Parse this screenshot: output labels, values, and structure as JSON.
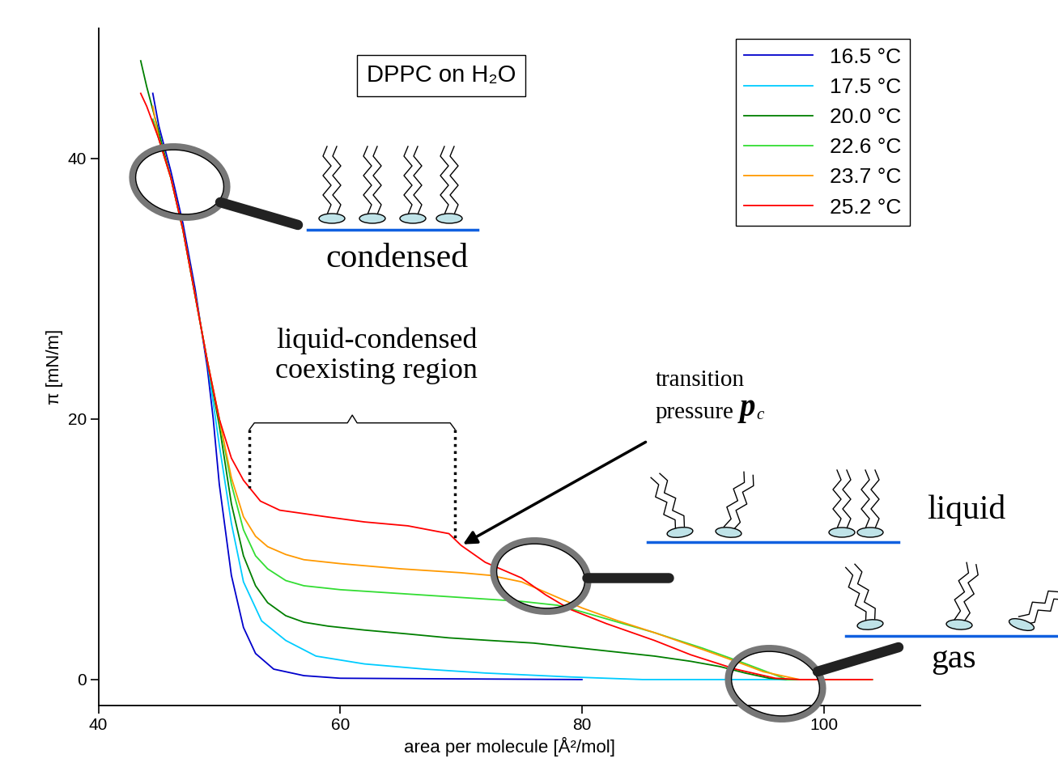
{
  "chart_data": {
    "type": "line",
    "title": "DPPC on H₂O",
    "x_label": "area per molecule [Å²/mol]",
    "y_label": "π [mN/m]",
    "xlim": [
      40,
      108
    ],
    "ylim": [
      -2,
      50
    ],
    "xticks": [
      40,
      60,
      80,
      100
    ],
    "yticks": [
      0,
      20,
      40
    ],
    "grid": false,
    "legend": "upper right",
    "series": [
      {
        "name": "16.5 °C",
        "color": "#0000cc",
        "x": [
          44.5,
          45,
          46,
          47,
          48,
          49,
          49.5,
          50,
          51,
          52,
          53,
          54.5,
          57,
          60,
          70,
          80
        ],
        "values": [
          45,
          42.5,
          39,
          35,
          30,
          24,
          20,
          15,
          8,
          4,
          2,
          0.8,
          0.3,
          0.1,
          0.05,
          0
        ]
      },
      {
        "name": "17.5 °C",
        "color": "#00ccff",
        "x": [
          44.5,
          45,
          46,
          47,
          48,
          49,
          50,
          51,
          52,
          53.5,
          55.5,
          58,
          62,
          67,
          72,
          79,
          85,
          95,
          104
        ],
        "values": [
          43,
          41.5,
          38.5,
          34.5,
          29.5,
          24.5,
          18,
          12,
          7.5,
          4.5,
          3,
          1.8,
          1.2,
          0.8,
          0.5,
          0.2,
          0,
          0,
          0
        ]
      },
      {
        "name": "20.0 °C",
        "color": "#007f00",
        "x": [
          43.5,
          44,
          45,
          46,
          47,
          48,
          49,
          50,
          51,
          52,
          53,
          54,
          55.5,
          57,
          59,
          62,
          65.6,
          69,
          72.4,
          76,
          79,
          83,
          86,
          89,
          91.4,
          93.5,
          95.5,
          97,
          104
        ],
        "values": [
          47.5,
          45.5,
          42,
          38.5,
          34.5,
          29.5,
          24.5,
          19.5,
          13.5,
          9.5,
          7.2,
          5.9,
          4.9,
          4.4,
          4.1,
          3.8,
          3.5,
          3.2,
          3,
          2.8,
          2.5,
          2.1,
          1.8,
          1.4,
          1,
          0.5,
          0.1,
          0,
          0
        ]
      },
      {
        "name": "22.6 °C",
        "color": "#33dd33",
        "x": [
          44.5,
          45,
          46,
          47,
          48,
          49,
          50,
          51,
          52,
          53,
          54,
          55.5,
          57,
          60,
          65,
          70,
          75,
          78,
          80,
          83,
          86,
          90,
          93,
          95,
          97,
          104
        ],
        "values": [
          43,
          41.5,
          38.5,
          34.5,
          29.5,
          24.5,
          20,
          15,
          11.5,
          9.5,
          8.5,
          7.6,
          7.2,
          6.9,
          6.6,
          6.3,
          6,
          5.7,
          5.2,
          4.4,
          3.6,
          2.4,
          1.4,
          0.7,
          0,
          0
        ]
      },
      {
        "name": "23.7 °C",
        "color": "#ff9900",
        "x": [
          44.5,
          45,
          46,
          47,
          48,
          49,
          50,
          51,
          52,
          53,
          54,
          55.5,
          57,
          60,
          65,
          70,
          72.4,
          75,
          78,
          80,
          83,
          86,
          90,
          93,
          95,
          98,
          104
        ],
        "values": [
          44,
          41.5,
          38.5,
          34.5,
          29.5,
          24.5,
          20,
          15.5,
          12.5,
          11,
          10.2,
          9.6,
          9.2,
          8.9,
          8.5,
          8.2,
          8,
          7.5,
          6.3,
          5.5,
          4.5,
          3.6,
          2.3,
          1.3,
          0.6,
          0,
          0
        ]
      },
      {
        "name": "25.2 °C",
        "color": "#ff0000",
        "x": [
          43.5,
          44,
          45,
          46,
          47,
          48,
          49,
          50,
          51,
          52,
          53.4,
          55,
          58.8,
          62,
          65.6,
          69,
          70,
          72,
          75,
          77,
          79,
          82,
          86,
          89,
          92.7,
          96,
          98,
          104
        ],
        "values": [
          45,
          44,
          41.5,
          38.5,
          34.5,
          29.5,
          24.5,
          20,
          17,
          15.3,
          13.7,
          13,
          12.5,
          12.1,
          11.8,
          11.2,
          10.3,
          9,
          7.8,
          6.5,
          5.4,
          4.3,
          3,
          1.9,
          0.8,
          0.1,
          0,
          0
        ]
      }
    ],
    "annotations": {
      "condensed": "condensed",
      "liquid": "liquid",
      "gas": "gas",
      "coexisting_region": {
        "label": [
          "liquid-condensed",
          "coexisting region"
        ],
        "x": [
          52.5,
          69.5
        ],
        "y": 19.5
      },
      "transition": {
        "text": [
          "transition",
          "pressure"
        ],
        "symbol": "p",
        "subscript": "c",
        "point": [
          70,
          10.3
        ]
      }
    }
  }
}
